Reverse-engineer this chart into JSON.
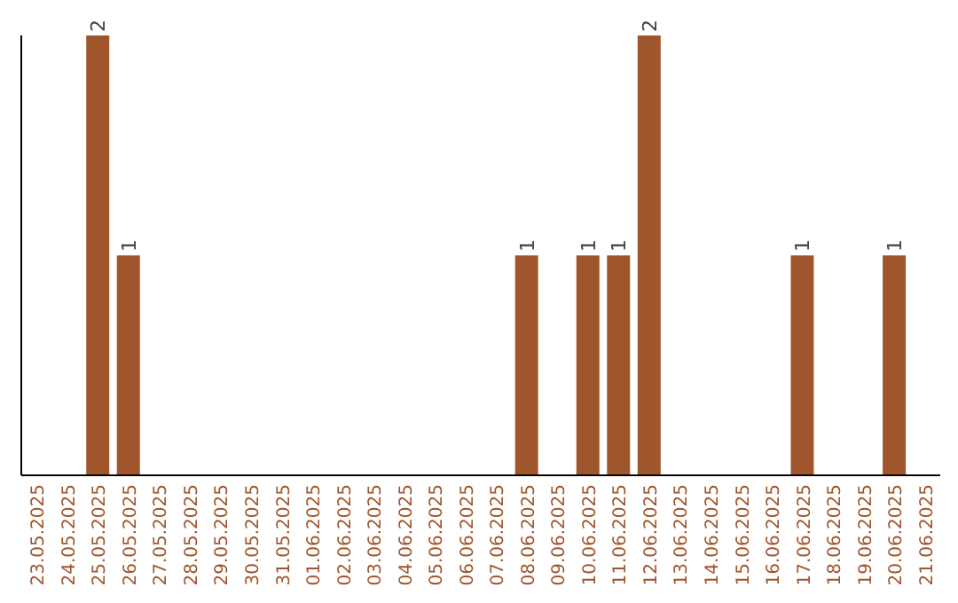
{
  "chart_data": {
    "type": "bar",
    "categories": [
      "23.05.2025",
      "24.05.2025",
      "25.05.2025",
      "26.05.2025",
      "27.05.2025",
      "28.05.2025",
      "29.05.2025",
      "30.05.2025",
      "31.05.2025",
      "01.06.2025",
      "02.06.2025",
      "03.06.2025",
      "04.06.2025",
      "05.06.2025",
      "06.06.2025",
      "07.06.2025",
      "08.06.2025",
      "09.06.2025",
      "10.06.2025",
      "11.06.2025",
      "12.06.2025",
      "13.06.2025",
      "14.06.2025",
      "15.06.2025",
      "16.06.2025",
      "17.06.2025",
      "18.06.2025",
      "19.06.2025",
      "20.06.2025",
      "21.06.2025"
    ],
    "values": [
      0,
      0,
      2,
      1,
      0,
      0,
      0,
      0,
      0,
      0,
      0,
      0,
      0,
      0,
      0,
      0,
      1,
      0,
      1,
      1,
      2,
      0,
      0,
      0,
      0,
      1,
      0,
      0,
      1,
      0
    ],
    "value_labels": [
      null,
      null,
      "2",
      "1",
      null,
      null,
      null,
      null,
      null,
      null,
      null,
      null,
      null,
      null,
      null,
      null,
      "1",
      null,
      "1",
      "1",
      "2",
      null,
      null,
      null,
      null,
      "1",
      null,
      null,
      "1",
      null
    ],
    "color": "#a0562c",
    "ylim": [
      0,
      2
    ],
    "tick_labels": "x",
    "grid": false,
    "legend": false
  }
}
